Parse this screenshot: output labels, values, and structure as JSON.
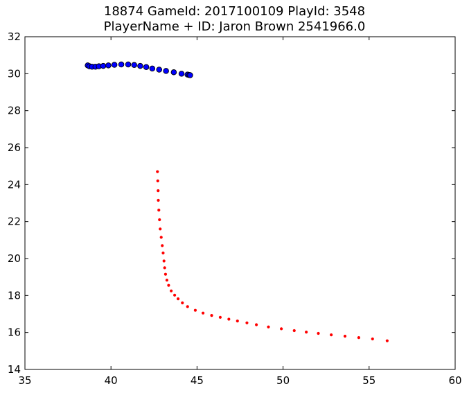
{
  "chart_data": {
    "type": "scatter",
    "title_lines": [
      "18874 GameId: 2017100109 PlayId: 3548",
      "PlayerName + ID: Jaron Brown 2541966.0"
    ],
    "xlabel": "",
    "ylabel": "",
    "xlim": [
      35,
      60
    ],
    "ylim": [
      14,
      32
    ],
    "x_ticks": [
      "35",
      "40",
      "45",
      "50",
      "55",
      "60"
    ],
    "y_ticks": [
      "14",
      "16",
      "18",
      "20",
      "22",
      "24",
      "26",
      "28",
      "30",
      "32"
    ],
    "grid": false,
    "series": [
      {
        "color": "#0000ff",
        "edge_color": "#000000",
        "marker": "large-circle",
        "points": [
          [
            38.65,
            30.45
          ],
          [
            38.75,
            30.4
          ],
          [
            38.9,
            30.38
          ],
          [
            39.1,
            30.38
          ],
          [
            39.3,
            30.4
          ],
          [
            39.55,
            30.42
          ],
          [
            39.85,
            30.45
          ],
          [
            40.2,
            30.48
          ],
          [
            40.6,
            30.5
          ],
          [
            41.0,
            30.5
          ],
          [
            41.35,
            30.47
          ],
          [
            41.7,
            30.42
          ],
          [
            42.05,
            30.36
          ],
          [
            42.4,
            30.28
          ],
          [
            42.8,
            30.22
          ],
          [
            43.2,
            30.15
          ],
          [
            43.65,
            30.08
          ],
          [
            44.1,
            30.0
          ],
          [
            44.45,
            29.95
          ],
          [
            44.55,
            29.93
          ],
          [
            44.6,
            29.92
          ]
        ]
      },
      {
        "color": "#ff0000",
        "edge_color": "#ff0000",
        "marker": "small-dot",
        "points": [
          [
            42.7,
            24.7
          ],
          [
            42.72,
            24.2
          ],
          [
            42.74,
            23.67
          ],
          [
            42.75,
            23.15
          ],
          [
            42.78,
            22.62
          ],
          [
            42.82,
            22.1
          ],
          [
            42.86,
            21.6
          ],
          [
            42.92,
            21.15
          ],
          [
            42.98,
            20.7
          ],
          [
            43.03,
            20.3
          ],
          [
            43.08,
            19.87
          ],
          [
            43.12,
            19.5
          ],
          [
            43.17,
            19.15
          ],
          [
            43.25,
            18.83
          ],
          [
            43.35,
            18.55
          ],
          [
            43.5,
            18.25
          ],
          [
            43.7,
            18.02
          ],
          [
            43.9,
            17.82
          ],
          [
            44.15,
            17.6
          ],
          [
            44.45,
            17.4
          ],
          [
            44.9,
            17.2
          ],
          [
            45.35,
            17.05
          ],
          [
            45.85,
            16.92
          ],
          [
            46.35,
            16.82
          ],
          [
            46.85,
            16.72
          ],
          [
            47.35,
            16.62
          ],
          [
            47.9,
            16.52
          ],
          [
            48.45,
            16.42
          ],
          [
            49.15,
            16.3
          ],
          [
            49.9,
            16.2
          ],
          [
            50.65,
            16.1
          ],
          [
            51.35,
            16.02
          ],
          [
            52.05,
            15.95
          ],
          [
            52.8,
            15.87
          ],
          [
            53.6,
            15.8
          ],
          [
            54.4,
            15.72
          ],
          [
            55.2,
            15.65
          ],
          [
            56.05,
            15.55
          ]
        ]
      }
    ]
  }
}
